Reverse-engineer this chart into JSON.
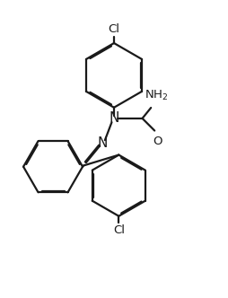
{
  "line_color": "#1a1a1a",
  "background_color": "#ffffff",
  "line_width": 1.6,
  "dbo": 0.055,
  "font_size": 9.5,
  "figsize": [
    2.54,
    3.32
  ],
  "dpi": 100,
  "xlim": [
    0,
    10
  ],
  "ylim": [
    0,
    13
  ]
}
